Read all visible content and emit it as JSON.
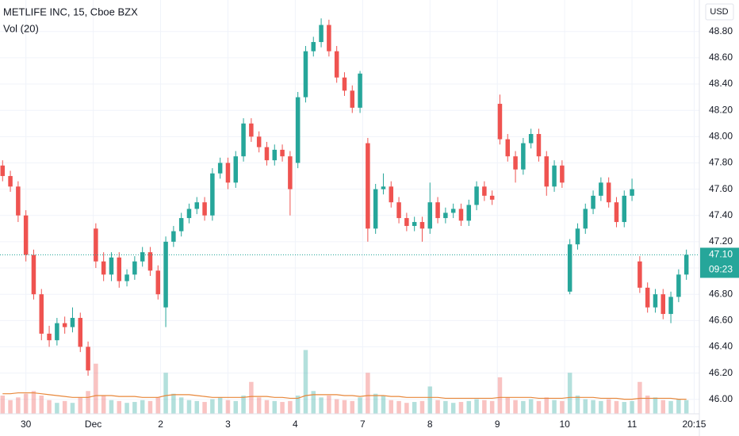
{
  "chart_data": {
    "type": "candlestick",
    "title": "METLIFE INC, 15, Cboe BZX",
    "volume_title": "Vol (20)",
    "currency": "USD",
    "up_color": "#26a69a",
    "down_color": "#ef5350",
    "ma_color": "#e8873a",
    "grid": true,
    "x": [
      1,
      4,
      7,
      10,
      13,
      16,
      19,
      22,
      25,
      28,
      31,
      34,
      37,
      40,
      43,
      46,
      49,
      52,
      55,
      58,
      61,
      64,
      67,
      70,
      73,
      76,
      79,
      82,
      85,
      88,
      91,
      94,
      97,
      100,
      103,
      106,
      109,
      112,
      115,
      118,
      121,
      124,
      127,
      130,
      133,
      136,
      139,
      142,
      145,
      148,
      151,
      154,
      157,
      160,
      163,
      166,
      169,
      172,
      175,
      178,
      181,
      184,
      187,
      190,
      193,
      196,
      199,
      202,
      205,
      208,
      211,
      214,
      217,
      220,
      223,
      226,
      229,
      232,
      235,
      238,
      241,
      244,
      247,
      250,
      253,
      256,
      259,
      262,
      265
    ],
    "open": [
      47.78,
      47.7,
      47.62,
      47.4,
      47.1,
      46.8,
      46.5,
      46.45,
      46.58,
      46.55,
      46.62,
      46.4,
      47.3,
      47.05,
      46.95,
      47.08,
      46.9,
      46.95,
      47.05,
      47.12,
      46.98,
      46.7,
      47.2,
      47.28,
      47.38,
      47.45,
      47.5,
      47.4,
      47.72,
      47.8,
      47.65,
      47.85,
      48.1,
      48.0,
      47.92,
      47.82,
      47.9,
      47.85,
      47.8,
      48.3,
      48.65,
      48.72,
      48.85,
      48.65,
      48.45,
      48.35,
      48.22,
      47.95,
      47.3,
      47.6,
      47.62,
      47.5,
      47.38,
      47.32,
      47.35,
      47.3,
      47.5,
      47.38,
      47.42,
      47.45,
      47.36,
      47.48,
      47.62,
      47.55,
      48.25,
      47.98,
      47.85,
      47.75,
      47.95,
      48.02,
      47.85,
      47.62,
      47.78,
      46.82,
      47.18,
      47.3,
      47.45,
      47.55,
      47.65,
      47.5,
      47.35,
      47.55,
      47.05,
      46.85,
      46.7,
      46.8,
      46.65,
      46.78,
      46.95
    ],
    "high": [
      47.82,
      47.74,
      47.66,
      47.44,
      47.14,
      46.84,
      46.56,
      46.62,
      46.63,
      46.7,
      46.66,
      46.44,
      47.34,
      47.12,
      47.12,
      47.12,
      46.99,
      47.09,
      47.16,
      47.16,
      47.02,
      47.24,
      47.32,
      47.42,
      47.49,
      47.54,
      47.54,
      47.76,
      47.84,
      47.84,
      47.89,
      48.14,
      48.14,
      48.04,
      47.96,
      47.94,
      47.94,
      47.89,
      48.34,
      48.69,
      48.76,
      48.9,
      48.89,
      48.69,
      48.49,
      48.39,
      48.5,
      47.99,
      47.64,
      47.72,
      47.66,
      47.54,
      47.42,
      47.39,
      47.39,
      47.65,
      47.54,
      47.46,
      47.49,
      47.49,
      47.52,
      47.66,
      47.66,
      47.59,
      48.32,
      48.02,
      47.89,
      47.99,
      48.06,
      48.06,
      47.89,
      47.82,
      47.82,
      47.22,
      47.34,
      47.49,
      47.59,
      47.69,
      47.69,
      47.54,
      47.59,
      47.68,
      47.09,
      46.89,
      46.84,
      46.84,
      46.82,
      46.99,
      47.14
    ],
    "low": [
      47.66,
      47.58,
      47.35,
      47.05,
      46.76,
      46.45,
      46.4,
      46.41,
      46.5,
      46.51,
      46.36,
      46.18,
      47.0,
      46.9,
      46.9,
      46.85,
      46.86,
      46.91,
      47.01,
      46.94,
      46.76,
      46.55,
      47.16,
      47.24,
      47.34,
      47.41,
      47.36,
      47.36,
      47.68,
      47.6,
      47.61,
      47.81,
      47.96,
      47.88,
      47.78,
      47.78,
      47.81,
      47.4,
      47.76,
      48.26,
      48.61,
      48.68,
      48.61,
      48.41,
      48.31,
      48.18,
      48.18,
      47.2,
      47.26,
      47.56,
      47.46,
      47.34,
      47.28,
      47.28,
      47.2,
      47.26,
      47.34,
      47.34,
      47.38,
      47.32,
      47.32,
      47.44,
      47.51,
      47.48,
      47.94,
      47.81,
      47.65,
      47.71,
      47.91,
      47.81,
      47.55,
      47.58,
      47.61,
      46.8,
      47.14,
      47.26,
      47.41,
      47.51,
      47.46,
      47.31,
      47.31,
      47.51,
      46.81,
      46.66,
      46.66,
      46.61,
      46.58,
      46.74,
      46.91
    ],
    "close": [
      47.7,
      47.62,
      47.4,
      47.1,
      46.8,
      46.5,
      46.45,
      46.58,
      46.55,
      46.62,
      46.4,
      46.22,
      47.05,
      46.95,
      47.08,
      46.9,
      46.95,
      47.05,
      47.12,
      46.98,
      46.8,
      47.2,
      47.28,
      47.38,
      47.45,
      47.5,
      47.4,
      47.72,
      47.8,
      47.65,
      47.85,
      48.1,
      48.0,
      47.92,
      47.82,
      47.9,
      47.85,
      47.6,
      48.3,
      48.65,
      48.72,
      48.85,
      48.65,
      48.45,
      48.35,
      48.22,
      48.48,
      47.3,
      47.6,
      47.62,
      47.5,
      47.38,
      47.32,
      47.35,
      47.3,
      47.5,
      47.38,
      47.42,
      47.45,
      47.36,
      47.48,
      47.62,
      47.55,
      47.52,
      47.98,
      47.85,
      47.75,
      47.95,
      48.02,
      47.85,
      47.62,
      47.78,
      47.65,
      47.18,
      47.3,
      47.45,
      47.55,
      47.65,
      47.5,
      47.35,
      47.55,
      47.6,
      46.85,
      46.7,
      46.8,
      46.65,
      46.78,
      46.95,
      47.1
    ],
    "volume": [
      20,
      15,
      18,
      22,
      25,
      20,
      15,
      12,
      14,
      12,
      18,
      25,
      55,
      20,
      15,
      14,
      12,
      13,
      15,
      14,
      18,
      45,
      22,
      18,
      15,
      14,
      13,
      16,
      18,
      15,
      14,
      20,
      35,
      18,
      15,
      14,
      13,
      14,
      20,
      70,
      25,
      18,
      20,
      16,
      15,
      14,
      18,
      45,
      22,
      20,
      15,
      14,
      12,
      13,
      14,
      30,
      15,
      14,
      12,
      13,
      14,
      16,
      15,
      14,
      40,
      18,
      15,
      14,
      16,
      14,
      18,
      15,
      14,
      45,
      20,
      16,
      15,
      14,
      16,
      14,
      13,
      14,
      35,
      20,
      18,
      15,
      14,
      16,
      15
    ],
    "volume_ma": [
      22,
      22,
      23,
      23,
      23,
      22,
      21,
      20,
      19,
      18,
      18,
      18,
      20,
      20,
      20,
      19,
      19,
      19,
      18,
      18,
      18,
      20,
      21,
      21,
      21,
      20,
      19,
      18,
      18,
      18,
      18,
      18,
      19,
      19,
      19,
      18,
      18,
      17,
      17,
      20,
      21,
      21,
      21,
      21,
      20,
      20,
      19,
      20,
      20,
      20,
      19,
      19,
      18,
      18,
      18,
      18,
      18,
      17,
      17,
      17,
      17,
      17,
      17,
      17,
      18,
      18,
      18,
      18,
      18,
      17,
      17,
      17,
      17,
      18,
      18,
      18,
      18,
      17,
      17,
      17,
      16,
      16,
      17,
      17,
      17,
      17,
      17,
      16,
      16
    ],
    "volume_lim": [
      0,
      80
    ],
    "xlim": [
      0,
      270
    ],
    "xticks": [
      {
        "value": 10,
        "label": "30"
      },
      {
        "value": 36,
        "label": "Dec"
      },
      {
        "value": 62,
        "label": "2"
      },
      {
        "value": 88,
        "label": "3"
      },
      {
        "value": 114,
        "label": "4"
      },
      {
        "value": 140,
        "label": "7"
      },
      {
        "value": 166,
        "label": "8"
      },
      {
        "value": 192,
        "label": "9"
      },
      {
        "value": 218,
        "label": "10"
      },
      {
        "value": 244,
        "label": "11"
      },
      {
        "value": 268,
        "label": "20:15"
      }
    ],
    "ylim": [
      45.89,
      49.04
    ],
    "yticks": [
      {
        "value": 46.0,
        "label": "46.00"
      },
      {
        "value": 46.2,
        "label": "46.20"
      },
      {
        "value": 46.4,
        "label": "46.40"
      },
      {
        "value": 46.6,
        "label": "46.60"
      },
      {
        "value": 46.8,
        "label": "46.80"
      },
      {
        "value": 47.0,
        "label": "47.00"
      },
      {
        "value": 47.2,
        "label": "47.20"
      },
      {
        "value": 47.4,
        "label": "47.40"
      },
      {
        "value": 47.6,
        "label": "47.60"
      },
      {
        "value": 47.8,
        "label": "47.80"
      },
      {
        "value": 48.0,
        "label": "48.00"
      },
      {
        "value": 48.2,
        "label": "48.20"
      },
      {
        "value": 48.4,
        "label": "48.40"
      },
      {
        "value": 48.6,
        "label": "48.60"
      },
      {
        "value": 48.8,
        "label": "48.80"
      }
    ],
    "last_price": {
      "value": 47.1,
      "label": "47.10"
    },
    "countdown": "09:23"
  }
}
